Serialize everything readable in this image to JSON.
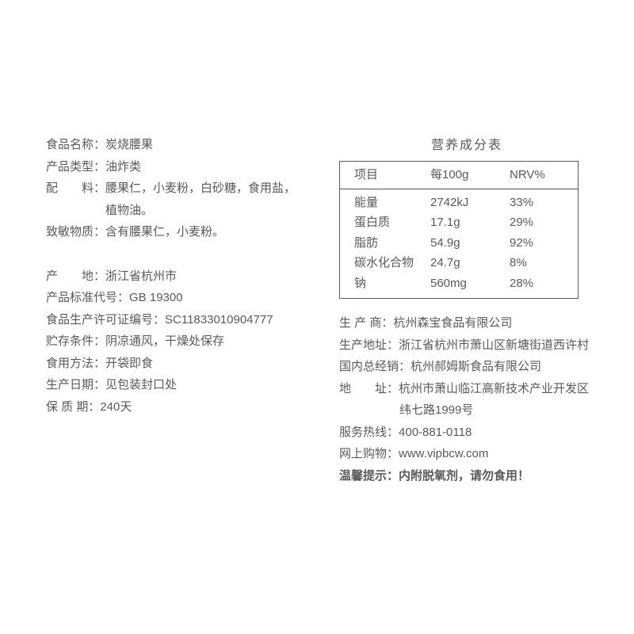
{
  "left": {
    "name_label": "食品名称：",
    "name_value": "炭烧腰果",
    "type_label": "产品类型：",
    "type_value": "油炸类",
    "ingredients_label": "配　　料：",
    "ingredients_value": "腰果仁，小麦粉，白砂糖，食用盐，",
    "ingredients_value2": "植物油。",
    "allergen_label": "致敏物质：",
    "allergen_value": "含有腰果仁，小麦粉。",
    "origin_label": "产　　地：",
    "origin_value": "浙江省杭州市",
    "std_label": "产品标准代号：",
    "std_value": "GB 19300",
    "lic_label": "食品生产许可证编号：",
    "lic_value": "SC11833010904777",
    "storage_label": "贮存条件：",
    "storage_value": "阴凉通风，干燥处保存",
    "eat_label": "食用方法：",
    "eat_value": "开袋即食",
    "prod_date_label": "生产日期：",
    "prod_date_value": "见包装封口处",
    "shelf_label": "保 质 期：",
    "shelf_value": "240天"
  },
  "nutrition": {
    "title": "营养成分表",
    "header": {
      "c1": "项目",
      "c2": "每100g",
      "c3": "NRV%"
    },
    "rows": [
      {
        "c1": "能量",
        "c2": "2742kJ",
        "c3": "33%"
      },
      {
        "c1": "蛋白质",
        "c2": "17.1g",
        "c3": "29%"
      },
      {
        "c1": "脂肪",
        "c2": "54.9g",
        "c3": "92%"
      },
      {
        "c1": "碳水化合物",
        "c2": "24.7g",
        "c3": "8%"
      },
      {
        "c1": "钠",
        "c2": "560mg",
        "c3": "28%"
      }
    ]
  },
  "right": {
    "producer_label": "生 产 商：",
    "producer_value": "杭州森宝食品有限公司",
    "prod_addr_label": "生产地址：",
    "prod_addr_value": "浙江省杭州市萧山区新塘街道西许村",
    "distributor_label": "国内总经销：",
    "distributor_value": "杭州郝姆斯食品有限公司",
    "addr_label": "地　　址：",
    "addr_value": "杭州市萧山临江高新技术产业开发区",
    "addr_value2": "纬七路1999号",
    "hotline_label": "服务热线：",
    "hotline_value": "400-881-0118",
    "shop_label": "网上购物：",
    "shop_value": "www.vipbcw.com",
    "warn_label": "温馨提示：",
    "warn_value": "内附脱氧剂，请勿食用！"
  }
}
